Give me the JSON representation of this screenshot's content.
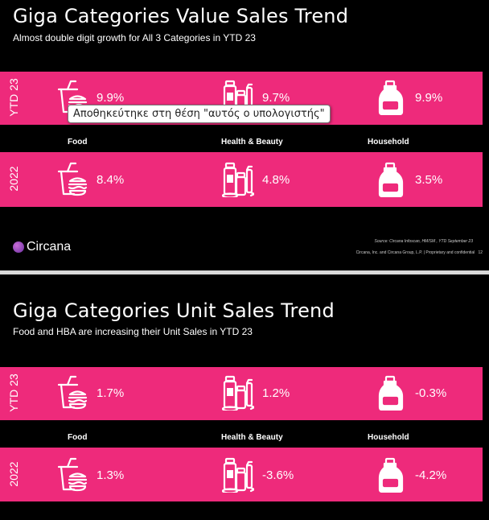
{
  "slide1": {
    "title": "Giga Categories Value Sales Trend",
    "subtitle": "Almost double digit growth for All 3 Categories in YTD 23",
    "rows": [
      {
        "label": "YTD 23",
        "food": "9.9%",
        "hba": "9.7%",
        "household": "9.9%"
      },
      {
        "label": "2022",
        "food": "8.4%",
        "hba": "4.8%",
        "household": "3.5%"
      }
    ],
    "categories": {
      "food": "Food",
      "hba": "Health & Beauty",
      "household": "Household"
    },
    "logo": "Circana",
    "source": "Source: Circana Infoscan, HM/SM , YTD September 23",
    "copyright": "Circana, Inc. and Circana Group, L.P. | Proprietary and confidential",
    "page": "12"
  },
  "slide2": {
    "title": "Giga Categories Unit Sales Trend",
    "subtitle": "Food and HBA are increasing their Unit Sales in YTD 23",
    "rows": [
      {
        "label": "YTD 23",
        "food": "1.7%",
        "hba": "1.2%",
        "household": "-0.3%"
      },
      {
        "label": "2022",
        "food": "1.3%",
        "hba": "-3.6%",
        "household": "-4.2%"
      }
    ],
    "categories": {
      "food": "Food",
      "hba": "Health & Beauty",
      "household": "Household"
    }
  },
  "tooltip": "Αποθηκεύτηκε στη θέση \"αυτός ο υπολογιστής\"",
  "colors": {
    "band": "#ee2a7b",
    "background": "#000000"
  }
}
